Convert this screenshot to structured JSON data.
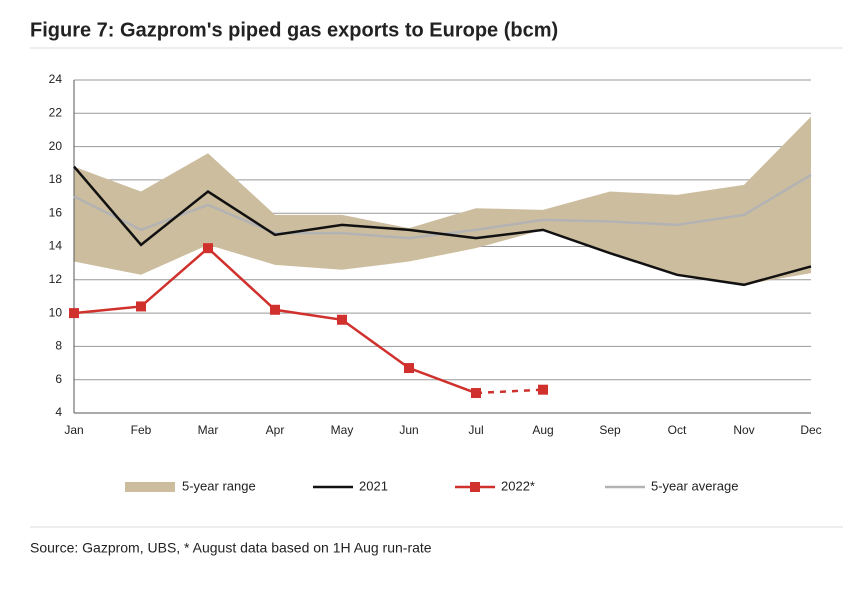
{
  "chart_data": {
    "type": "line",
    "title": "Figure 7: Gazprom's piped gas exports to Europe (bcm)",
    "source": "Source: Gazprom, UBS, * August data based on 1H Aug run-rate",
    "categories": [
      "Jan",
      "Feb",
      "Mar",
      "Apr",
      "May",
      "Jun",
      "Jul",
      "Aug",
      "Sep",
      "Oct",
      "Nov",
      "Dec"
    ],
    "ylim": [
      4,
      24
    ],
    "yticks": [
      4,
      6,
      8,
      10,
      12,
      14,
      16,
      18,
      20,
      22,
      24
    ],
    "grid": true,
    "legend": "bottom",
    "range": {
      "name": "5-year range",
      "color": "#cdbd9f",
      "high": [
        18.8,
        17.3,
        19.6,
        15.9,
        15.9,
        15.1,
        16.3,
        16.2,
        17.3,
        17.1,
        17.7,
        21.8
      ],
      "low": [
        13.1,
        12.3,
        14.1,
        12.9,
        12.6,
        13.1,
        13.9,
        15.0,
        13.6,
        12.3,
        11.7,
        12.4
      ]
    },
    "series": [
      {
        "name": "2021",
        "color": "#111111",
        "values": [
          18.8,
          14.1,
          17.3,
          14.7,
          15.3,
          15.0,
          14.5,
          15.0,
          13.6,
          12.3,
          11.7,
          12.8
        ]
      },
      {
        "name": "2022*",
        "color": "#d0312d",
        "markers": true,
        "dashed_from_index": 6,
        "values": [
          10.0,
          10.4,
          13.9,
          10.2,
          9.6,
          6.7,
          5.2,
          5.4,
          null,
          null,
          null,
          null
        ]
      },
      {
        "name": "5-year average",
        "color": "#b3b3b3",
        "values": [
          17.0,
          15.0,
          16.5,
          14.8,
          14.8,
          14.5,
          15.0,
          15.6,
          15.5,
          15.3,
          15.9,
          18.3
        ]
      }
    ]
  }
}
